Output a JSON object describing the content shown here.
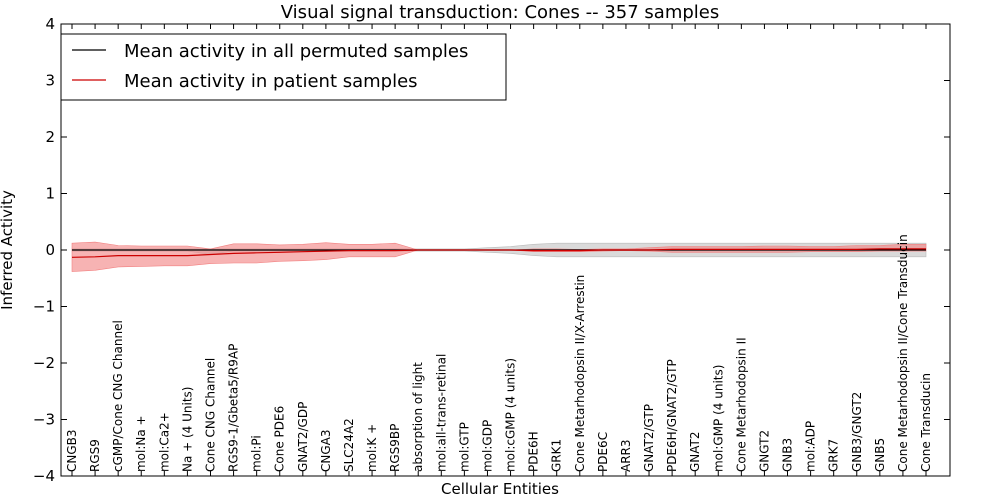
{
  "chart_data": {
    "type": "line",
    "title": "Visual signal transduction: Cones -- 357 samples",
    "xlabel": "Cellular Entities",
    "ylabel": "Inferred Activity",
    "ylim": [
      -4,
      4
    ],
    "yticks": [
      -4,
      -3,
      -2,
      -1,
      0,
      1,
      2,
      3,
      4
    ],
    "ytick_labels": [
      "−4",
      "−3",
      "−2",
      "−1",
      "0",
      "1",
      "2",
      "3",
      "4"
    ],
    "grid": false,
    "legend_position": "top-left",
    "categories": [
      "CNGB3",
      "RGS9",
      "cGMP/Cone CNG Channel",
      "mol:Na +",
      "mol:Ca2+",
      "Na + (4 Units)",
      "Cone CNG Channel",
      "RGS9-1/Gbeta5/R9AP",
      "mol:Pi",
      "Cone PDE6",
      "GNAT2/GDP",
      "CNGA3",
      "SLC24A2",
      "mol:K +",
      "RGS9BP",
      "absorption of light",
      "mol:all-trans-retinal",
      "mol:GTP",
      "mol:GDP",
      "mol:cGMP (4 units)",
      "PDE6H",
      "GRK1",
      "Cone Metarhodopsin II/X-Arrestin",
      "PDE6C",
      "ARR3",
      "GNAT2/GTP",
      "PDE6H/GNAT2/GTP",
      "GNAT2",
      "mol:GMP (4 units)",
      "Cone Metarhodopsin II",
      "GNGT2",
      "GNB3",
      "mol:ADP",
      "GRK7",
      "GNB3/GNGT2",
      "GNB5",
      "Cone Metarhodopsin II/Cone Transducin",
      "Cone Transducin"
    ],
    "series": [
      {
        "name": "Mean activity in all permuted samples",
        "color": "#000000",
        "band_color": "#bbbbbb",
        "values": [
          0,
          0,
          0,
          0,
          0,
          0,
          0,
          0,
          0,
          0,
          0,
          0,
          0,
          0,
          0,
          0,
          0,
          0,
          0,
          0,
          0,
          0,
          0,
          0,
          0,
          0,
          0,
          0,
          0,
          0,
          0,
          0,
          0,
          0,
          0,
          0,
          0,
          0
        ],
        "lower": [
          -0.02,
          -0.02,
          -0.02,
          -0.02,
          -0.02,
          -0.02,
          -0.08,
          -0.02,
          -0.02,
          -0.02,
          -0.02,
          -0.02,
          -0.02,
          -0.02,
          -0.02,
          -0.02,
          -0.02,
          -0.02,
          -0.04,
          -0.06,
          -0.1,
          -0.12,
          -0.12,
          -0.12,
          -0.12,
          -0.12,
          -0.12,
          -0.12,
          -0.12,
          -0.12,
          -0.12,
          -0.12,
          -0.12,
          -0.12,
          -0.12,
          -0.12,
          -0.12,
          -0.12
        ],
        "upper": [
          0.02,
          0.02,
          0.02,
          0.02,
          0.02,
          0.02,
          0.02,
          0.02,
          0.02,
          0.02,
          0.02,
          0.02,
          0.02,
          0.02,
          0.02,
          0.02,
          0.02,
          0.02,
          0.04,
          0.06,
          0.1,
          0.12,
          0.12,
          0.12,
          0.12,
          0.12,
          0.12,
          0.12,
          0.12,
          0.12,
          0.12,
          0.12,
          0.12,
          0.12,
          0.12,
          0.12,
          0.12,
          0.12
        ]
      },
      {
        "name": "Mean activity in patient samples",
        "color": "#cc0000",
        "band_color": "#f28080",
        "values": [
          -0.13,
          -0.12,
          -0.1,
          -0.1,
          -0.1,
          -0.1,
          -0.08,
          -0.06,
          -0.05,
          -0.04,
          -0.03,
          -0.02,
          -0.01,
          -0.01,
          -0.01,
          0,
          0,
          0,
          0,
          0,
          -0.01,
          -0.01,
          -0.01,
          0,
          0,
          0,
          0.01,
          0.01,
          0.01,
          0.01,
          0.01,
          0.01,
          0.01,
          0.01,
          0.01,
          0.02,
          0.02,
          0.02
        ],
        "lower": [
          -0.38,
          -0.36,
          -0.3,
          -0.29,
          -0.28,
          -0.28,
          -0.24,
          -0.23,
          -0.23,
          -0.2,
          -0.19,
          -0.17,
          -0.12,
          -0.12,
          -0.12,
          0,
          0,
          0,
          0,
          0,
          -0.03,
          -0.03,
          -0.03,
          -0.02,
          -0.01,
          -0.02,
          -0.04,
          -0.04,
          -0.04,
          -0.04,
          -0.04,
          -0.04,
          -0.03,
          -0.03,
          -0.03,
          -0.02,
          -0.02,
          -0.02
        ],
        "upper": [
          0.12,
          0.14,
          0.08,
          0.07,
          0.07,
          0.07,
          0.02,
          0.11,
          0.11,
          0.09,
          0.1,
          0.13,
          0.1,
          0.1,
          0.12,
          0,
          0,
          0,
          0,
          0,
          0.02,
          0.02,
          0.01,
          0.02,
          0.02,
          0.04,
          0.06,
          0.06,
          0.06,
          0.06,
          0.07,
          0.07,
          0.06,
          0.06,
          0.08,
          0.08,
          0.1,
          0.1
        ]
      }
    ]
  }
}
